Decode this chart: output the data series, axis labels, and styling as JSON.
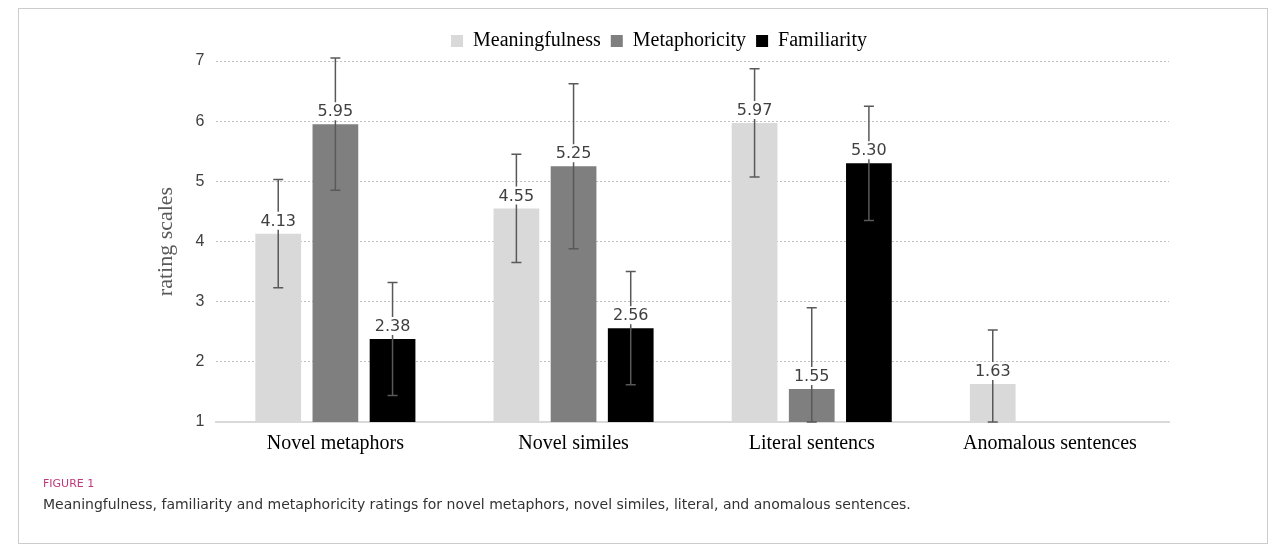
{
  "chart_data": {
    "type": "bar",
    "ylabel": "rating scales",
    "categories": [
      "Novel metaphors",
      "Novel similes",
      "Literal sentencs",
      "Anomalous sentences"
    ],
    "series": [
      {
        "name": "Meaningfulness",
        "color": "#d9d9d9",
        "values": [
          4.13,
          4.55,
          5.97,
          1.63
        ],
        "value_labels": [
          "4.13",
          "4.55",
          "5.97",
          "1.63"
        ],
        "errors": [
          0.9,
          0.9,
          0.9,
          [
            1.0,
            2.53
          ]
        ]
      },
      {
        "name": "Metaphoricity",
        "color": "#7f7f7f",
        "values": [
          5.95,
          5.25,
          1.55,
          null
        ],
        "value_labels": [
          "5.95",
          "5.25",
          "1.55",
          null
        ],
        "errors": [
          1.1,
          1.37,
          [
            1.0,
            2.9
          ],
          null
        ]
      },
      {
        "name": "Familiarity",
        "color": "#000000",
        "values": [
          2.38,
          2.56,
          5.3,
          null
        ],
        "value_labels": [
          "2.38",
          "2.56",
          "5.30",
          null
        ],
        "errors": [
          0.94,
          0.94,
          0.95,
          null
        ]
      }
    ],
    "ylim": [
      1,
      7
    ],
    "yticks": [
      1,
      2,
      3,
      4,
      5,
      6,
      7
    ],
    "grid": "y",
    "legend": "top",
    "annotations": [
      "FIGURE 1",
      "Meaningfulness, familiarity and metaphoricity ratings for novel metaphors, novel similes, literal, and anomalous sentences."
    ]
  }
}
